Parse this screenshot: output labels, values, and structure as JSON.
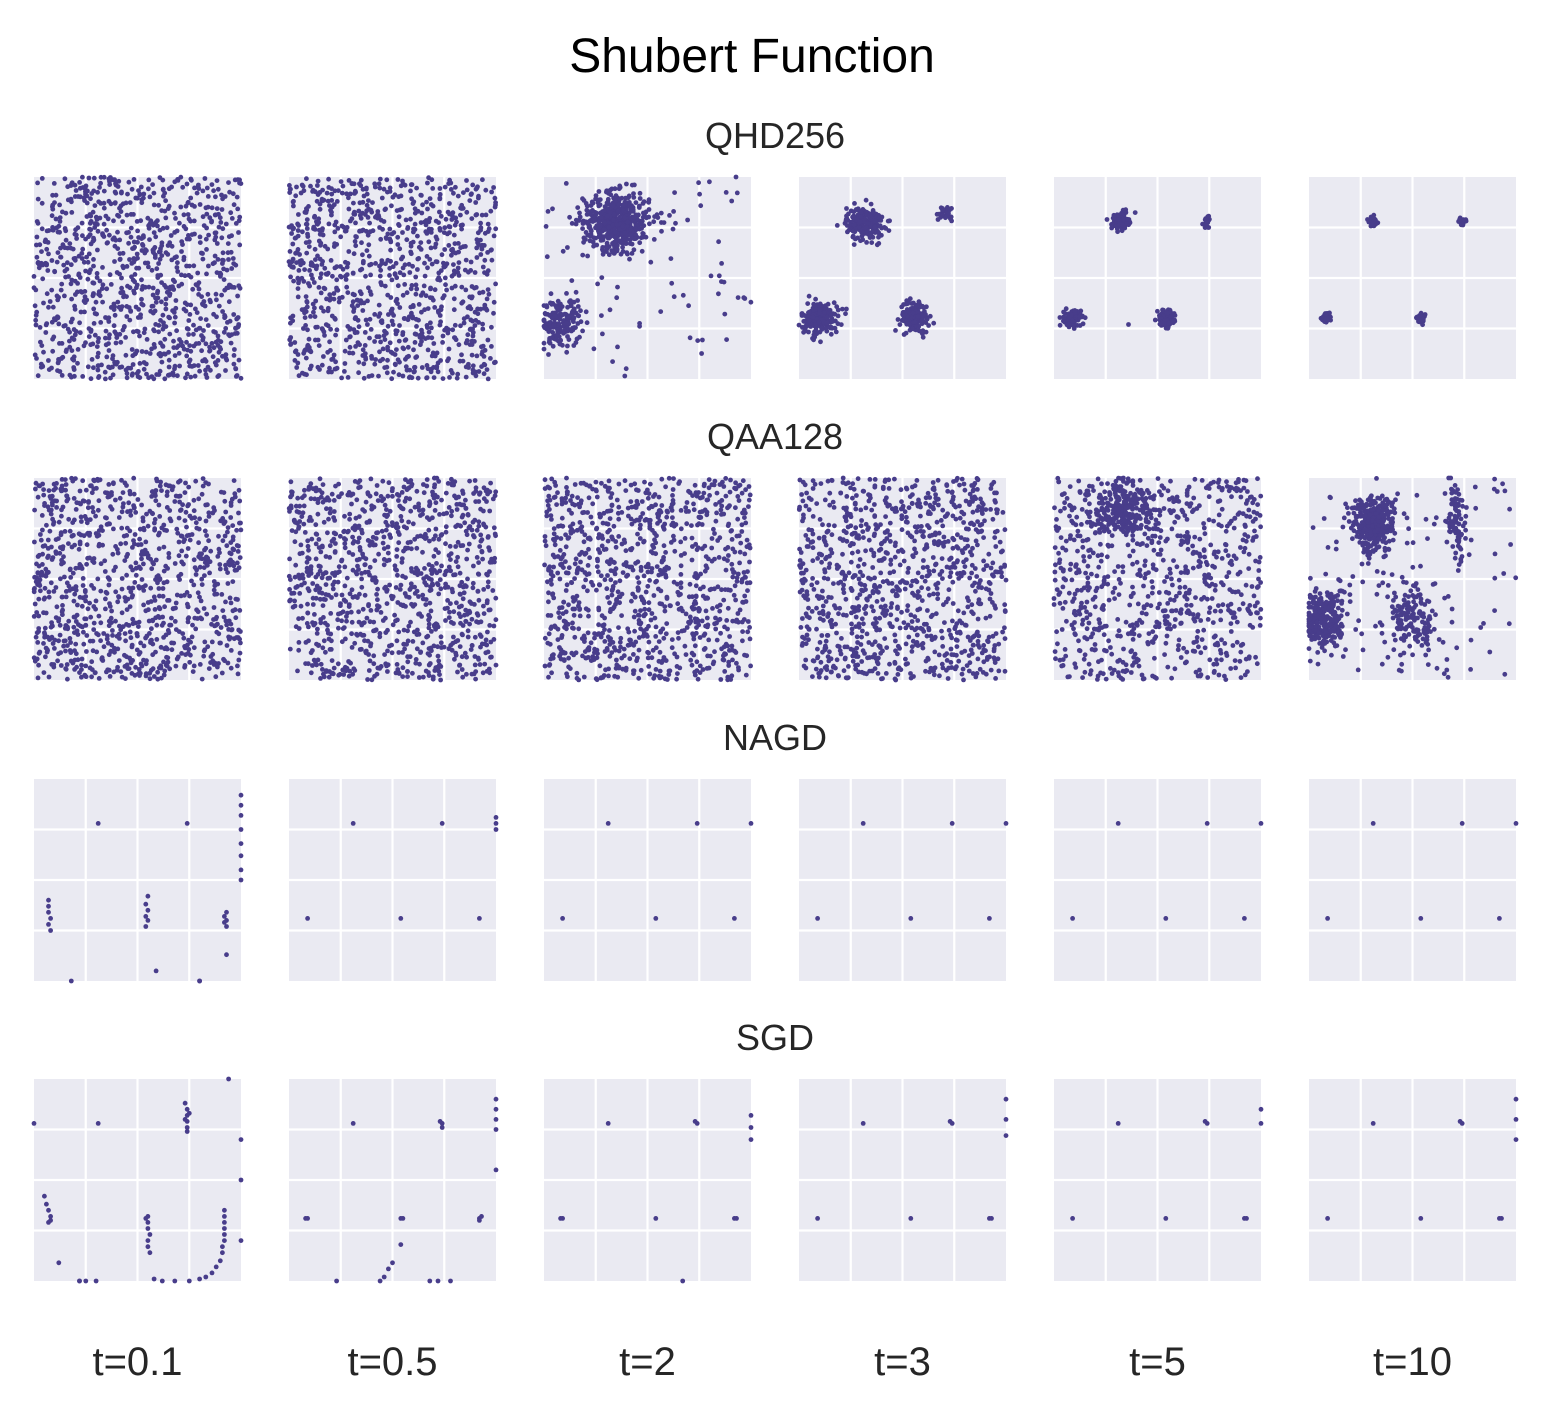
{
  "figure": {
    "title": "Shubert Function",
    "point_color": "#483d8b",
    "panel_bg": "#eaeaf2",
    "grid_color": "#ffffff"
  },
  "chart_data": {
    "type": "scatter",
    "title": "Shubert Function",
    "rows": [
      "QHD256",
      "QAA128",
      "NAGD",
      "SGD"
    ],
    "columns": [
      "t=0.1",
      "t=0.5",
      "t=2",
      "t=3",
      "t=5",
      "t=10"
    ],
    "xlim": [
      0,
      1
    ],
    "ylim": [
      0,
      1
    ],
    "grid": true,
    "grid_positions": [
      0.25,
      0.5,
      0.75
    ],
    "axes_visible": false,
    "panels": [
      [
        {
          "uniform": 1000
        },
        {
          "uniform": 1000
        },
        {
          "clusters": [
            [
              0.35,
              0.78,
              0.08,
              0.07,
              500
            ],
            [
              0.08,
              0.28,
              0.05,
              0.06,
              160
            ]
          ],
          "uniform": 80
        },
        {
          "clusters": [
            [
              0.32,
              0.77,
              0.045,
              0.04,
              220
            ],
            [
              0.1,
              0.3,
              0.045,
              0.04,
              200
            ],
            [
              0.56,
              0.31,
              0.035,
              0.04,
              130
            ],
            [
              0.71,
              0.82,
              0.025,
              0.02,
              25
            ]
          ]
        },
        {
          "clusters": [
            [
              0.32,
              0.78,
              0.02,
              0.02,
              120
            ],
            [
              0.09,
              0.3,
              0.02,
              0.02,
              110
            ],
            [
              0.54,
              0.3,
              0.02,
              0.02,
              100
            ],
            [
              0.74,
              0.78,
              0.01,
              0.015,
              20
            ]
          ],
          "points": [
            [
              0.36,
              0.27
            ]
          ]
        },
        {
          "clusters": [
            [
              0.31,
              0.78,
              0.01,
              0.012,
              60
            ],
            [
              0.08,
              0.3,
              0.01,
              0.012,
              60
            ],
            [
              0.54,
              0.3,
              0.01,
              0.01,
              50
            ],
            [
              0.74,
              0.78,
              0.008,
              0.008,
              25
            ]
          ]
        }
      ],
      [
        {
          "uniform": 1000
        },
        {
          "uniform": 1000
        },
        {
          "uniform": 1000
        },
        {
          "uniform": 1000
        },
        {
          "uniform": 800,
          "clusters": [
            [
              0.32,
              0.85,
              0.08,
              0.06,
              220
            ]
          ]
        },
        {
          "clusters": [
            [
              0.31,
              0.77,
              0.05,
              0.07,
              350
            ],
            [
              0.08,
              0.3,
              0.05,
              0.08,
              260
            ],
            [
              0.5,
              0.3,
              0.06,
              0.1,
              150
            ],
            [
              0.71,
              0.78,
              0.03,
              0.1,
              80
            ]
          ],
          "uniform": 90
        }
      ],
      [
        {
          "points": [
            [
              0.31,
              0.78
            ],
            [
              0.74,
              0.78
            ],
            [
              0.07,
              0.4
            ],
            [
              0.07,
              0.37
            ],
            [
              0.07,
              0.34
            ],
            [
              0.08,
              0.31
            ],
            [
              0.07,
              0.28
            ],
            [
              0.08,
              0.25
            ],
            [
              0.55,
              0.42
            ],
            [
              0.54,
              0.38
            ],
            [
              0.55,
              0.35
            ],
            [
              0.54,
              0.32
            ],
            [
              0.55,
              0.3
            ],
            [
              0.54,
              0.27
            ],
            [
              0.93,
              0.34
            ],
            [
              0.92,
              0.32
            ],
            [
              0.93,
              0.3
            ],
            [
              0.92,
              0.29
            ],
            [
              0.93,
              0.27
            ],
            [
              0.93,
              0.13
            ],
            [
              0.59,
              0.05
            ],
            [
              0.18,
              0.0
            ],
            [
              0.8,
              0.0
            ],
            [
              0.8,
              0.0
            ],
            [
              1.0,
              0.92
            ],
            [
              1.0,
              0.87
            ],
            [
              1.0,
              0.82
            ],
            [
              1.0,
              0.75
            ],
            [
              1.0,
              0.68
            ],
            [
              1.0,
              0.62
            ],
            [
              1.0,
              0.55
            ],
            [
              1.0,
              0.5
            ]
          ]
        },
        {
          "points": [
            [
              0.31,
              0.78
            ],
            [
              0.74,
              0.78
            ],
            [
              0.09,
              0.31
            ],
            [
              0.54,
              0.31
            ],
            [
              0.92,
              0.31
            ],
            [
              1.0,
              0.81
            ],
            [
              1.0,
              0.78
            ],
            [
              1.0,
              0.75
            ]
          ]
        },
        {
          "points": [
            [
              0.31,
              0.78
            ],
            [
              0.74,
              0.78
            ],
            [
              0.09,
              0.31
            ],
            [
              0.54,
              0.31
            ],
            [
              0.92,
              0.31
            ],
            [
              1.0,
              0.78
            ]
          ]
        },
        {
          "points": [
            [
              0.31,
              0.78
            ],
            [
              0.74,
              0.78
            ],
            [
              0.09,
              0.31
            ],
            [
              0.54,
              0.31
            ],
            [
              0.92,
              0.31
            ],
            [
              1.0,
              0.78
            ]
          ]
        },
        {
          "points": [
            [
              0.31,
              0.78
            ],
            [
              0.74,
              0.78
            ],
            [
              0.09,
              0.31
            ],
            [
              0.54,
              0.31
            ],
            [
              0.92,
              0.31
            ],
            [
              1.0,
              0.78
            ]
          ]
        },
        {
          "points": [
            [
              0.31,
              0.78
            ],
            [
              0.74,
              0.78
            ],
            [
              0.09,
              0.31
            ],
            [
              0.54,
              0.31
            ],
            [
              0.92,
              0.31
            ],
            [
              1.0,
              0.78
            ]
          ]
        }
      ],
      [
        {
          "points": [
            [
              0.31,
              0.78
            ],
            [
              0.74,
              0.85
            ],
            [
              0.74,
              0.82
            ],
            [
              0.74,
              0.79
            ],
            [
              0.74,
              0.76
            ],
            [
              0.74,
              0.74
            ],
            [
              0.73,
              0.88
            ],
            [
              0.75,
              0.83
            ],
            [
              0.73,
              0.8
            ],
            [
              0.05,
              0.42
            ],
            [
              0.06,
              0.38
            ],
            [
              0.07,
              0.35
            ],
            [
              0.08,
              0.32
            ],
            [
              0.07,
              0.29
            ],
            [
              0.08,
              0.3
            ],
            [
              0.12,
              0.09
            ],
            [
              0.55,
              0.32
            ],
            [
              0.55,
              0.29
            ],
            [
              0.55,
              0.26
            ],
            [
              0.56,
              0.23
            ],
            [
              0.55,
              0.2
            ],
            [
              0.55,
              0.17
            ],
            [
              0.56,
              0.14
            ],
            [
              0.54,
              0.31
            ],
            [
              0.92,
              0.35
            ],
            [
              0.92,
              0.32
            ],
            [
              0.92,
              0.29
            ],
            [
              0.92,
              0.26
            ],
            [
              0.92,
              0.23
            ],
            [
              0.92,
              0.2
            ],
            [
              0.91,
              0.17
            ],
            [
              0.91,
              0.14
            ],
            [
              0.9,
              0.1
            ],
            [
              0.88,
              0.07
            ],
            [
              0.86,
              0.04
            ],
            [
              0.83,
              0.02
            ],
            [
              0.8,
              0.01
            ],
            [
              0.75,
              0.0
            ],
            [
              0.68,
              0.0
            ],
            [
              0.62,
              0.0
            ],
            [
              0.58,
              0.01
            ],
            [
              0.3,
              0.0
            ],
            [
              0.25,
              0.0
            ],
            [
              0.22,
              0.0
            ],
            [
              0.0,
              0.78
            ],
            [
              1.0,
              0.5
            ],
            [
              1.0,
              0.7
            ],
            [
              1.0,
              0.2
            ],
            [
              0.94,
              1.0
            ],
            [
              0.22,
              0.0
            ]
          ]
        },
        {
          "points": [
            [
              0.31,
              0.78
            ],
            [
              0.74,
              0.78
            ],
            [
              0.74,
              0.76
            ],
            [
              0.73,
              0.79
            ],
            [
              0.09,
              0.31
            ],
            [
              0.08,
              0.31
            ],
            [
              0.54,
              0.31
            ],
            [
              0.55,
              0.31
            ],
            [
              0.92,
              0.31
            ],
            [
              0.93,
              0.32
            ],
            [
              0.92,
              0.3
            ],
            [
              0.54,
              0.18
            ],
            [
              0.5,
              0.09
            ],
            [
              0.48,
              0.06
            ],
            [
              0.46,
              0.02
            ],
            [
              0.44,
              0.0
            ],
            [
              0.23,
              0.0
            ],
            [
              0.68,
              0.0
            ],
            [
              0.72,
              0.0
            ],
            [
              0.78,
              0.0
            ],
            [
              1.0,
              0.9
            ],
            [
              1.0,
              0.85
            ],
            [
              1.0,
              0.8
            ],
            [
              1.0,
              0.75
            ],
            [
              1.0,
              0.55
            ]
          ]
        },
        {
          "points": [
            [
              0.31,
              0.78
            ],
            [
              0.74,
              0.78
            ],
            [
              0.73,
              0.79
            ],
            [
              0.09,
              0.31
            ],
            [
              0.08,
              0.31
            ],
            [
              0.54,
              0.31
            ],
            [
              0.92,
              0.31
            ],
            [
              0.93,
              0.31
            ],
            [
              0.67,
              0.0
            ],
            [
              1.0,
              0.82
            ],
            [
              1.0,
              0.76
            ],
            [
              1.0,
              0.7
            ]
          ]
        },
        {
          "points": [
            [
              0.31,
              0.78
            ],
            [
              0.74,
              0.78
            ],
            [
              0.73,
              0.79
            ],
            [
              0.09,
              0.31
            ],
            [
              0.54,
              0.31
            ],
            [
              0.92,
              0.31
            ],
            [
              0.93,
              0.31
            ],
            [
              1.0,
              0.9
            ],
            [
              1.0,
              0.8
            ],
            [
              1.0,
              0.72
            ]
          ]
        },
        {
          "points": [
            [
              0.31,
              0.78
            ],
            [
              0.74,
              0.78
            ],
            [
              0.73,
              0.79
            ],
            [
              0.09,
              0.31
            ],
            [
              0.54,
              0.31
            ],
            [
              0.92,
              0.31
            ],
            [
              0.93,
              0.31
            ],
            [
              1.0,
              0.85
            ],
            [
              1.0,
              0.78
            ]
          ]
        },
        {
          "points": [
            [
              0.31,
              0.78
            ],
            [
              0.74,
              0.78
            ],
            [
              0.73,
              0.79
            ],
            [
              0.09,
              0.31
            ],
            [
              0.54,
              0.31
            ],
            [
              0.92,
              0.31
            ],
            [
              0.93,
              0.31
            ],
            [
              1.0,
              0.9
            ],
            [
              1.0,
              0.8
            ],
            [
              1.0,
              0.7
            ]
          ]
        }
      ]
    ]
  }
}
